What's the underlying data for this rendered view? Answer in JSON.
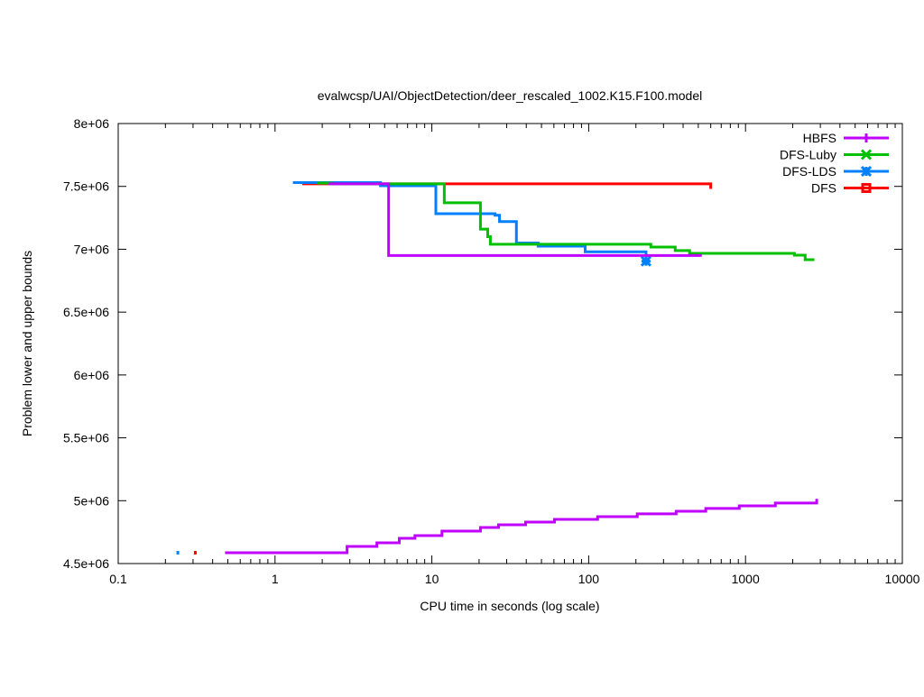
{
  "chart_data": {
    "type": "line",
    "title": "evalwcsp/UAI/ObjectDetection/deer_rescaled_1002.K15.F100.model",
    "xlabel": "CPU time in seconds (log scale)",
    "ylabel": "Problem lower and upper bounds",
    "xscale": "log",
    "xlim": [
      0.1,
      10000
    ],
    "ylim": [
      4500000,
      8000000
    ],
    "xticks": [
      0.1,
      1,
      10,
      100,
      1000,
      10000
    ],
    "xtick_labels": [
      "0.1",
      "1",
      "10",
      "100",
      "1000",
      "10000"
    ],
    "yticks": [
      4500000,
      5000000,
      5500000,
      6000000,
      6500000,
      7000000,
      7500000,
      8000000
    ],
    "ytick_labels": [
      "4.5e+06",
      "5e+06",
      "5.5e+06",
      "6e+06",
      "6.5e+06",
      "7e+06",
      "7.5e+06",
      "8e+06"
    ],
    "legend_position": "top-right",
    "grid": false,
    "series": [
      {
        "name": "HBFS",
        "color": "#c000ff",
        "marker": "plus",
        "upper": [
          [
            2.2,
            7520000
          ],
          [
            5.3,
            6950000
          ],
          [
            516,
            6950000
          ],
          [
            516,
            6940000
          ]
        ],
        "lower": [
          [
            0.48,
            4586000
          ],
          [
            2.88,
            4636000
          ],
          [
            4.46,
            4665000
          ],
          [
            6.2,
            4701000
          ],
          [
            7.8,
            4722000
          ],
          [
            11.6,
            4758000
          ],
          [
            20.4,
            4787000
          ],
          [
            26.6,
            4808000
          ],
          [
            39.6,
            4830000
          ],
          [
            60.5,
            4851000
          ],
          [
            114,
            4873000
          ],
          [
            204,
            4895000
          ],
          [
            361,
            4916000
          ],
          [
            558,
            4938000
          ],
          [
            912,
            4959000
          ],
          [
            1549,
            4981000
          ],
          [
            2844,
            5002000
          ],
          [
            2844,
            5015000
          ]
        ]
      },
      {
        "name": "DFS-Luby",
        "color": "#00c000",
        "marker": "cross",
        "upper": [
          [
            1.86,
            7527000
          ],
          [
            2.3,
            7520000
          ],
          [
            12,
            7370000
          ],
          [
            20.4,
            7160000
          ],
          [
            22.7,
            7100000
          ],
          [
            23.6,
            7040000
          ],
          [
            249,
            7017000
          ],
          [
            356,
            6990000
          ],
          [
            440,
            6967000
          ],
          [
            2050,
            6953000
          ],
          [
            2400,
            6917000
          ],
          [
            2750,
            6917000
          ]
        ],
        "lower": []
      },
      {
        "name": "DFS-LDS",
        "color": "#0080ff",
        "marker": "star",
        "upper": [
          [
            1.3,
            7530000
          ],
          [
            4.7,
            7505000
          ],
          [
            10.6,
            7283000
          ],
          [
            25.3,
            7270000
          ],
          [
            27,
            7220000
          ],
          [
            34.6,
            7050000
          ],
          [
            47.6,
            7025000
          ],
          [
            95,
            6980000
          ],
          [
            232,
            6950000
          ],
          [
            232,
            6930000
          ]
        ],
        "lower": [
          [
            0.24,
            4586000
          ]
        ],
        "point": [
          232,
          6905000
        ]
      },
      {
        "name": "DFS",
        "color": "#ff0000",
        "marker": "square",
        "upper": [
          [
            1.49,
            7520000
          ],
          [
            600,
            7520000
          ],
          [
            600,
            7480000
          ]
        ],
        "lower": [
          [
            0.31,
            4586000
          ]
        ]
      }
    ]
  }
}
